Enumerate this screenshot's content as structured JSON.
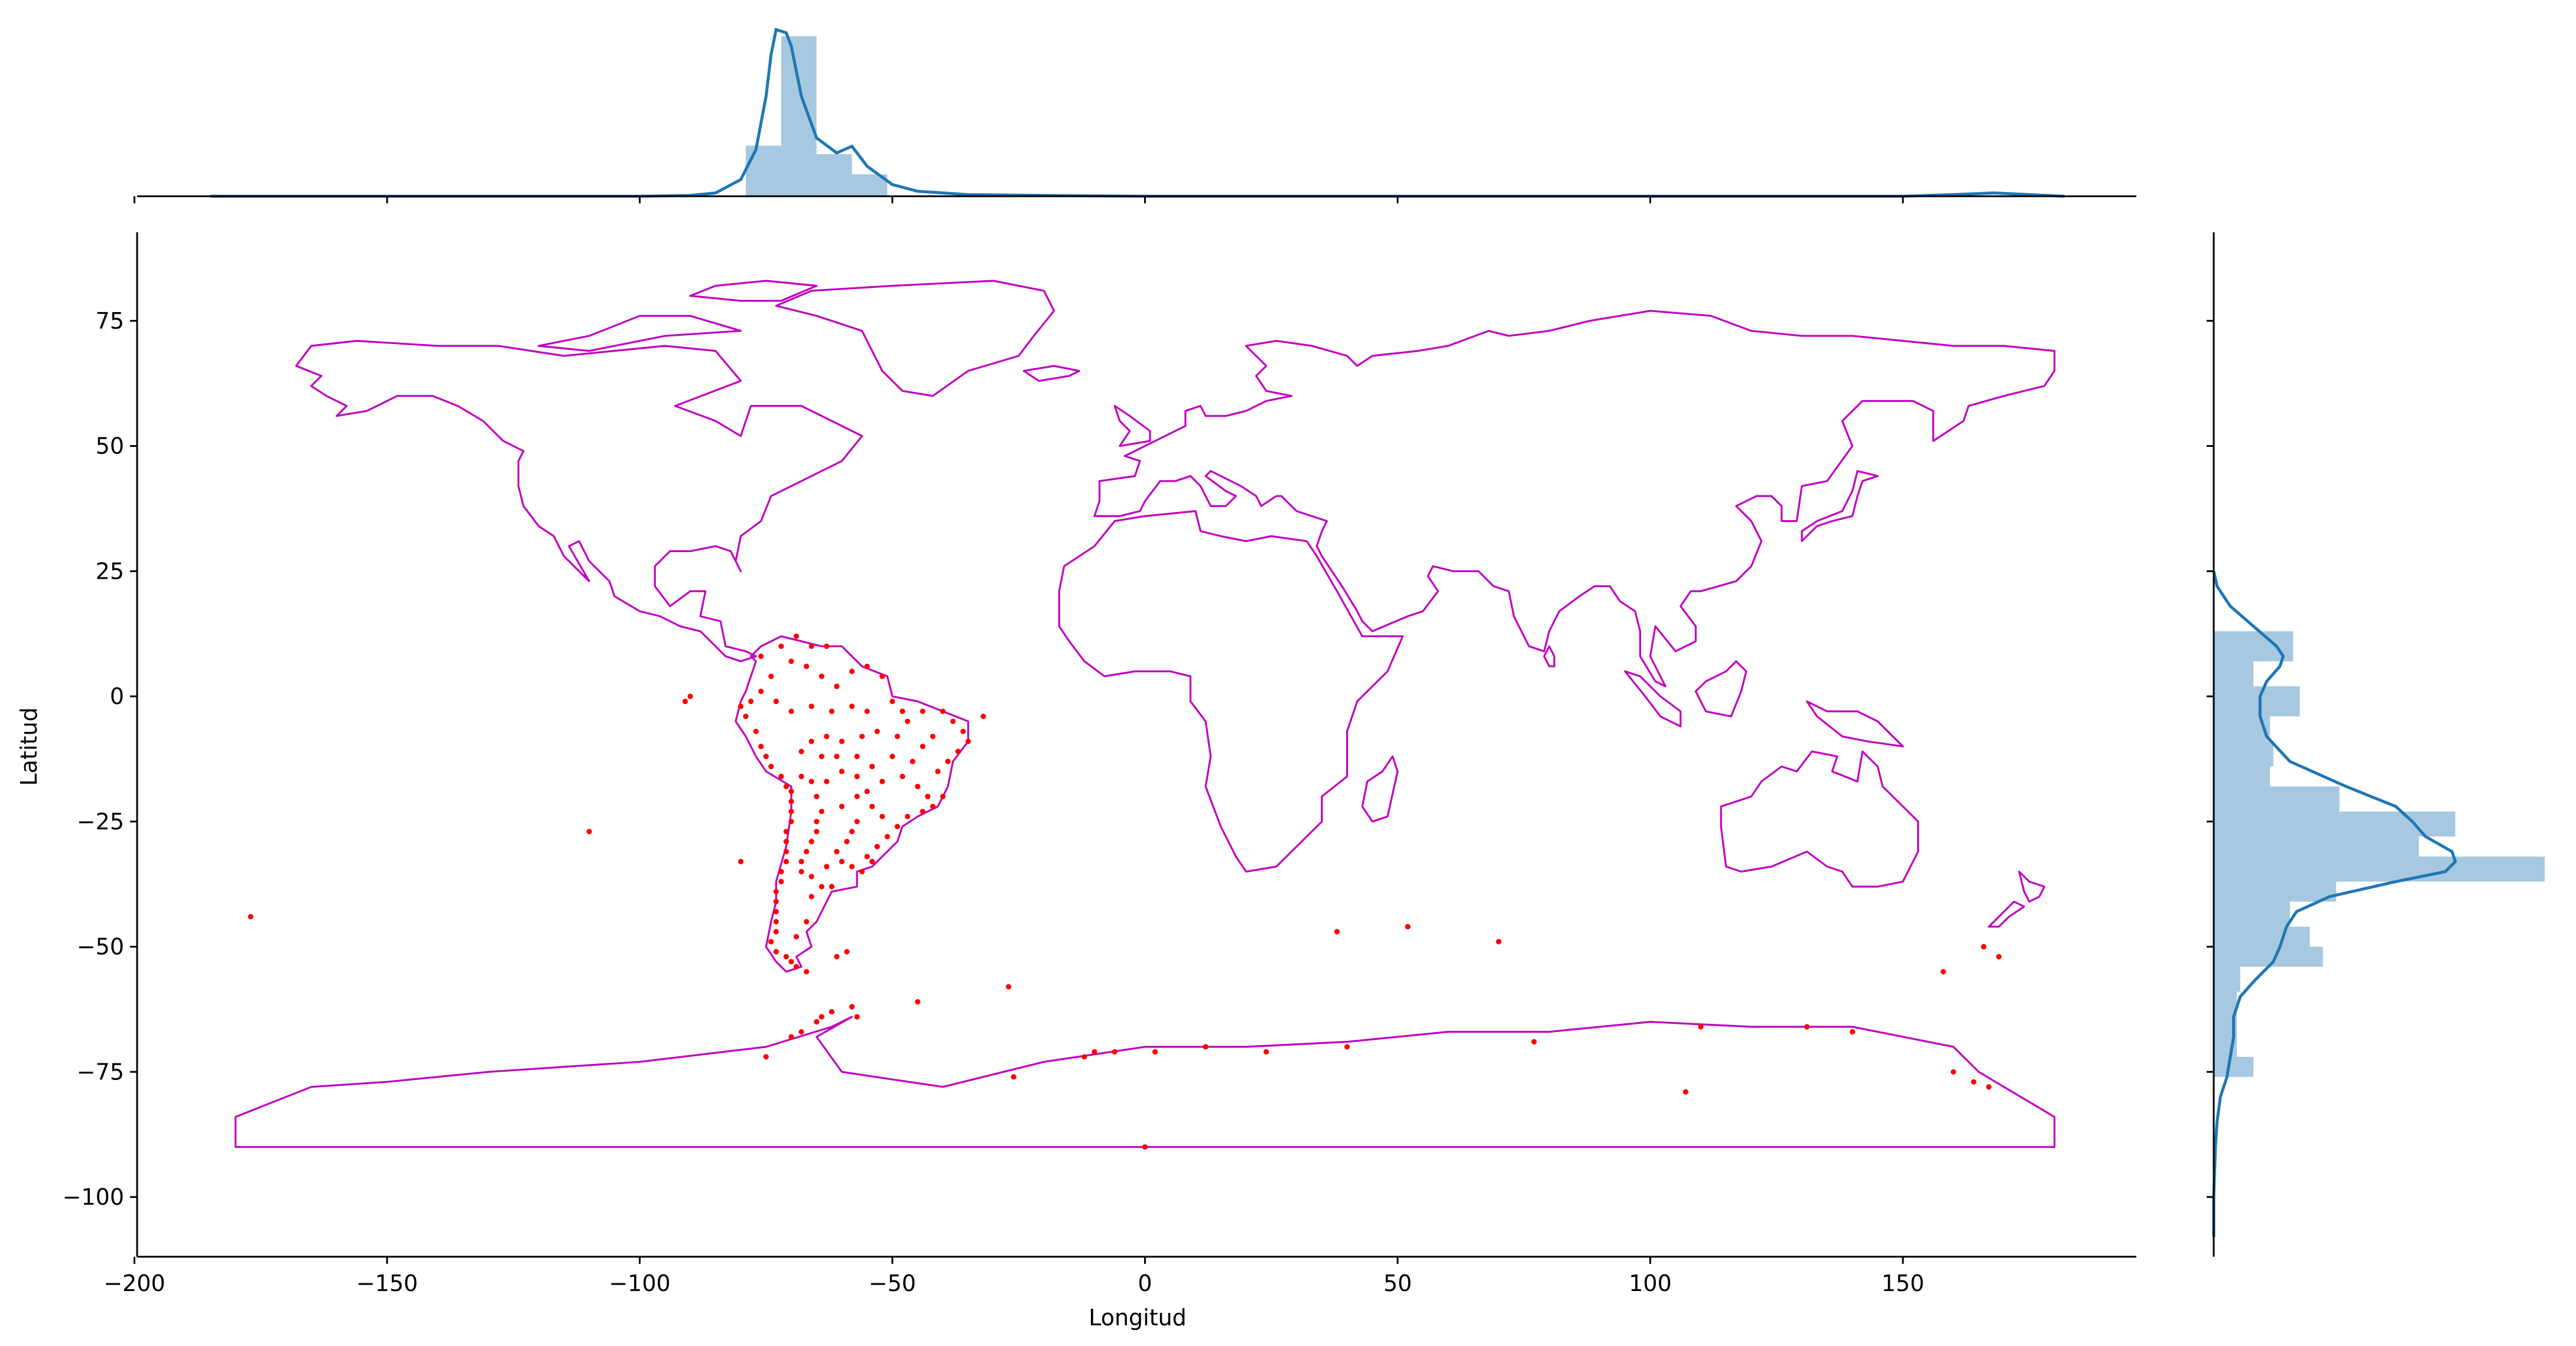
{
  "chart_data": [
    {
      "type": "scatter",
      "panel": "main",
      "xlabel": "Longitud",
      "ylabel": "Latitud",
      "xlim": [
        -202,
        196
      ],
      "ylim": [
        -112,
        93
      ],
      "xticks": [
        -200,
        -150,
        -100,
        -50,
        0,
        50,
        100,
        150
      ],
      "yticks": [
        75,
        50,
        25,
        0,
        -25,
        -50,
        -75,
        -100
      ],
      "xtick_labels": [
        "−200",
        "−150",
        "−100",
        "−50",
        "0",
        "50",
        "100",
        "150"
      ],
      "ytick_labels": [
        "75",
        "50",
        "25",
        "0",
        "−25",
        "−50",
        "−75",
        "−100"
      ],
      "grid": false,
      "basemap_color": "#c000c0",
      "point_color": "#ff0000",
      "points": [
        [
          -69,
          12
        ],
        [
          -72,
          10
        ],
        [
          -66,
          10
        ],
        [
          -63,
          10
        ],
        [
          -58,
          5
        ],
        [
          -55,
          6
        ],
        [
          -52,
          4
        ],
        [
          -76,
          8
        ],
        [
          -74,
          4
        ],
        [
          -70,
          7
        ],
        [
          -67,
          6
        ],
        [
          -64,
          4
        ],
        [
          -61,
          2
        ],
        [
          -76,
          1
        ],
        [
          -73,
          -1
        ],
        [
          -70,
          -3
        ],
        [
          -66,
          -2
        ],
        [
          -62,
          -3
        ],
        [
          -58,
          -2
        ],
        [
          -55,
          -3
        ],
        [
          -50,
          -1
        ],
        [
          -48,
          -3
        ],
        [
          -44,
          -3
        ],
        [
          -40,
          -3
        ],
        [
          -38,
          -5
        ],
        [
          -36,
          -7
        ],
        [
          -35,
          -9
        ],
        [
          -37,
          -11
        ],
        [
          -39,
          -13
        ],
        [
          -41,
          -15
        ],
        [
          -40,
          -20
        ],
        [
          -42,
          -22
        ],
        [
          -44,
          -23
        ],
        [
          -47,
          -24
        ],
        [
          -49,
          -26
        ],
        [
          -51,
          -28
        ],
        [
          -53,
          -30
        ],
        [
          -55,
          -32
        ],
        [
          -78,
          -1
        ],
        [
          -80,
          -2
        ],
        [
          -79,
          -4
        ],
        [
          -77,
          -7
        ],
        [
          -76,
          -10
        ],
        [
          -75,
          -12
        ],
        [
          -74,
          -14
        ],
        [
          -72,
          -16
        ],
        [
          -71,
          -18
        ],
        [
          -70,
          -19
        ],
        [
          -70,
          -21
        ],
        [
          -70,
          -23
        ],
        [
          -70,
          -25
        ],
        [
          -71,
          -27
        ],
        [
          -71,
          -29
        ],
        [
          -71,
          -31
        ],
        [
          -71,
          -33
        ],
        [
          -72,
          -35
        ],
        [
          -72,
          -37
        ],
        [
          -73,
          -39
        ],
        [
          -73,
          -41
        ],
        [
          -73,
          -43
        ],
        [
          -73,
          -45
        ],
        [
          -73,
          -47
        ],
        [
          -74,
          -49
        ],
        [
          -73,
          -51
        ],
        [
          -71,
          -52
        ],
        [
          -70,
          -53
        ],
        [
          -69,
          -54
        ],
        [
          -67,
          -55
        ],
        [
          -68,
          -35
        ],
        [
          -68,
          -33
        ],
        [
          -67,
          -31
        ],
        [
          -66,
          -29
        ],
        [
          -65,
          -27
        ],
        [
          -65,
          -25
        ],
        [
          -64,
          -23
        ],
        [
          -65,
          -20
        ],
        [
          -66,
          -17
        ],
        [
          -68,
          -16
        ],
        [
          -63,
          -17
        ],
        [
          -60,
          -15
        ],
        [
          -57,
          -16
        ],
        [
          -55,
          -19
        ],
        [
          -54,
          -22
        ],
        [
          -52,
          -24
        ],
        [
          -57,
          -25
        ],
        [
          -58,
          -27
        ],
        [
          -59,
          -29
        ],
        [
          -61,
          -31
        ],
        [
          -60,
          -33
        ],
        [
          -58,
          -34
        ],
        [
          -62,
          -38
        ],
        [
          -64,
          -38
        ],
        [
          -66,
          -40
        ],
        [
          -67,
          -45
        ],
        [
          -69,
          -48
        ],
        [
          -66,
          -36
        ],
        [
          -63,
          -34
        ],
        [
          -56,
          -35
        ],
        [
          -54,
          -33
        ],
        [
          -60,
          -22
        ],
        [
          -57,
          -20
        ],
        [
          -52,
          -17
        ],
        [
          -48,
          -16
        ],
        [
          -46,
          -13
        ],
        [
          -44,
          -10
        ],
        [
          -42,
          -8
        ],
        [
          -49,
          -8
        ],
        [
          -47,
          -5
        ],
        [
          -53,
          -7
        ],
        [
          -56,
          -8
        ],
        [
          -60,
          -9
        ],
        [
          -63,
          -8
        ],
        [
          -66,
          -9
        ],
        [
          -68,
          -11
        ],
        [
          -64,
          -12
        ],
        [
          -61,
          -12
        ],
        [
          -57,
          -12
        ],
        [
          -50,
          -12
        ],
        [
          -54,
          -14
        ],
        [
          -45,
          -18
        ],
        [
          -43,
          -20
        ],
        [
          -110,
          -27
        ],
        [
          -177,
          -44
        ],
        [
          -80,
          -33
        ],
        [
          -32,
          -4
        ],
        [
          -90,
          0
        ],
        [
          -91,
          -1
        ],
        [
          -64,
          -64
        ],
        [
          -62,
          -63
        ],
        [
          -58,
          -62
        ],
        [
          -45,
          -61
        ],
        [
          -27,
          -58
        ],
        [
          -26,
          -76
        ],
        [
          -12,
          -72
        ],
        [
          0,
          -90
        ],
        [
          38,
          -47
        ],
        [
          52,
          -46
        ],
        [
          70,
          -49
        ],
        [
          107,
          -79
        ],
        [
          158,
          -55
        ],
        [
          166,
          -50
        ],
        [
          169,
          -52
        ],
        [
          -59,
          -51
        ],
        [
          -61,
          -52
        ],
        [
          2,
          -71
        ],
        [
          -10,
          -71
        ],
        [
          -6,
          -71
        ],
        [
          12,
          -70
        ],
        [
          24,
          -71
        ],
        [
          40,
          -70
        ],
        [
          77,
          -69
        ],
        [
          110,
          -66
        ],
        [
          131,
          -66
        ],
        [
          140,
          -67
        ],
        [
          160,
          -75
        ],
        [
          164,
          -77
        ],
        [
          167,
          -78
        ],
        [
          -68,
          -67
        ],
        [
          -57,
          -64
        ],
        [
          -70,
          -68
        ],
        [
          -75,
          -72
        ],
        [
          -65,
          -65
        ]
      ]
    },
    {
      "type": "histogram",
      "panel": "top-marginal",
      "variable": "Longitud",
      "bins": [
        {
          "x0": -79,
          "x1": -72,
          "h": 0.3
        },
        {
          "x0": -72,
          "x1": -65,
          "h": 0.95
        },
        {
          "x0": -65,
          "x1": -58,
          "h": 0.25
        },
        {
          "x0": -58,
          "x1": -51,
          "h": 0.13
        }
      ],
      "kde": [
        [
          -185,
          0
        ],
        [
          -150,
          0
        ],
        [
          -100,
          0
        ],
        [
          -90,
          0.005
        ],
        [
          -85,
          0.02
        ],
        [
          -80,
          0.1
        ],
        [
          -77,
          0.28
        ],
        [
          -75,
          0.6
        ],
        [
          -74,
          0.85
        ],
        [
          -73,
          1.0
        ],
        [
          -71,
          0.98
        ],
        [
          -70,
          0.9
        ],
        [
          -68,
          0.6
        ],
        [
          -65,
          0.35
        ],
        [
          -61,
          0.26
        ],
        [
          -58,
          0.3
        ],
        [
          -55,
          0.18
        ],
        [
          -50,
          0.07
        ],
        [
          -45,
          0.03
        ],
        [
          -35,
          0.01
        ],
        [
          -20,
          0.005
        ],
        [
          0,
          0
        ],
        [
          50,
          0
        ],
        [
          100,
          0
        ],
        [
          150,
          0
        ],
        [
          160,
          0.01
        ],
        [
          168,
          0.02
        ],
        [
          175,
          0.01
        ],
        [
          182,
          0
        ]
      ],
      "bar_color": "#a6c8e0",
      "line_color": "#1f77b4"
    },
    {
      "type": "histogram",
      "panel": "right-marginal",
      "variable": "Latitud",
      "bins": [
        {
          "y0": 7,
          "y1": 13,
          "h": 0.24
        },
        {
          "y0": 2,
          "y1": 7,
          "h": 0.12
        },
        {
          "y0": -4,
          "y1": 2,
          "h": 0.26
        },
        {
          "y0": -9,
          "y1": -4,
          "h": 0.17
        },
        {
          "y0": -14,
          "y1": -9,
          "h": 0.18
        },
        {
          "y0": -18,
          "y1": -14,
          "h": 0.17
        },
        {
          "y0": -23,
          "y1": -18,
          "h": 0.38
        },
        {
          "y0": -28,
          "y1": -23,
          "h": 0.73
        },
        {
          "y0": -32,
          "y1": -28,
          "h": 0.62
        },
        {
          "y0": -37,
          "y1": -32,
          "h": 1.0
        },
        {
          "y0": -41,
          "y1": -37,
          "h": 0.37
        },
        {
          "y0": -46,
          "y1": -41,
          "h": 0.23
        },
        {
          "y0": -50,
          "y1": -46,
          "h": 0.29
        },
        {
          "y0": -54,
          "y1": -50,
          "h": 0.33
        },
        {
          "y0": -59,
          "y1": -54,
          "h": 0.08
        },
        {
          "y0": -72,
          "y1": -59,
          "h": 0.07
        },
        {
          "y0": -76,
          "y1": -72,
          "h": 0.12
        }
      ],
      "kde": [
        [
          25,
          0
        ],
        [
          22,
          0.01
        ],
        [
          18,
          0.05
        ],
        [
          14,
          0.12
        ],
        [
          10,
          0.19
        ],
        [
          8,
          0.21
        ],
        [
          6,
          0.2
        ],
        [
          3,
          0.16
        ],
        [
          0,
          0.14
        ],
        [
          -4,
          0.14
        ],
        [
          -8,
          0.16
        ],
        [
          -13,
          0.23
        ],
        [
          -18,
          0.4
        ],
        [
          -22,
          0.55
        ],
        [
          -25,
          0.6
        ],
        [
          -28,
          0.64
        ],
        [
          -31,
          0.72
        ],
        [
          -33,
          0.73
        ],
        [
          -35,
          0.7
        ],
        [
          -37,
          0.55
        ],
        [
          -40,
          0.35
        ],
        [
          -43,
          0.25
        ],
        [
          -46,
          0.22
        ],
        [
          -50,
          0.2
        ],
        [
          -53,
          0.18
        ],
        [
          -57,
          0.12
        ],
        [
          -60,
          0.08
        ],
        [
          -64,
          0.06
        ],
        [
          -68,
          0.06
        ],
        [
          -72,
          0.05
        ],
        [
          -76,
          0.04
        ],
        [
          -80,
          0.02
        ],
        [
          -85,
          0.01
        ],
        [
          -90,
          0.005
        ],
        [
          -100,
          0
        ],
        [
          -108,
          0
        ]
      ],
      "bar_color": "#a6c8e0",
      "line_color": "#1f77b4"
    }
  ]
}
